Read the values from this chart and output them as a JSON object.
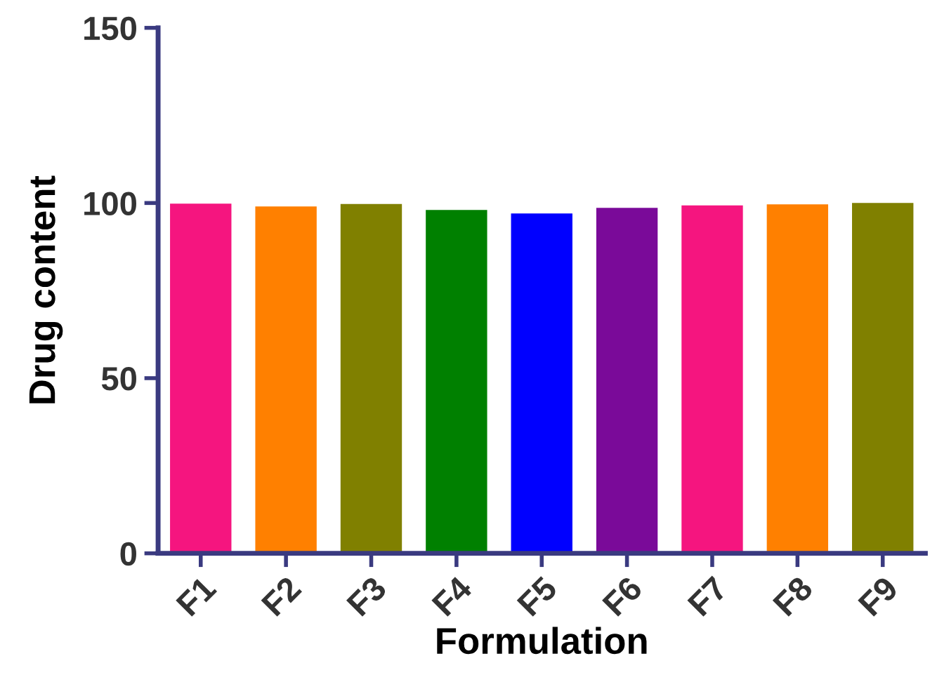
{
  "chart_data": {
    "type": "bar",
    "xlabel": "Formulation",
    "ylabel": "Drug content",
    "categories": [
      "F1",
      "F2",
      "F3",
      "F4",
      "F5",
      "F6",
      "F7",
      "F8",
      "F9"
    ],
    "values": [
      99.8,
      99.0,
      99.7,
      98.0,
      97.0,
      98.6,
      99.3,
      99.6,
      100.0
    ],
    "colors": [
      "#f5157f",
      "#ff8000",
      "#808000",
      "#008000",
      "#0000ff",
      "#7a0a99",
      "#f5157f",
      "#ff8000",
      "#808000"
    ],
    "ylim": [
      0,
      150
    ],
    "yticks": [
      0,
      50,
      100,
      150
    ],
    "grid": false
  }
}
